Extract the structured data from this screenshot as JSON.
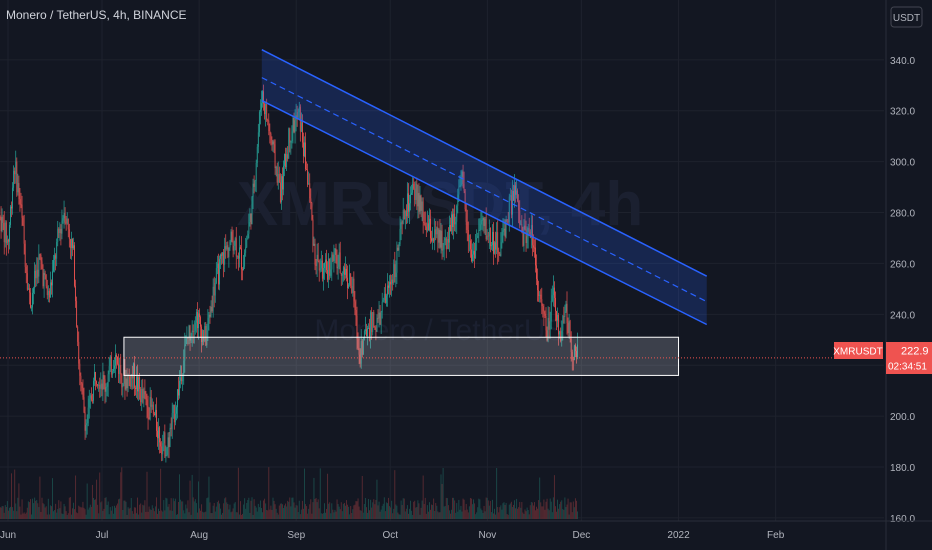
{
  "header": {
    "title": "Monero / TetherUS, 4h, BINANCE"
  },
  "watermark": {
    "symbol": "XMRUSDT, 4h",
    "name": "Monero / TetherUS"
  },
  "currency_button": "USDT",
  "price_tag": {
    "symbol": "XMRUSDT",
    "price": "222.9",
    "countdown": "02:34:51"
  },
  "colors": {
    "background": "#131722",
    "up": "#26a69a",
    "down": "#ef5350",
    "channel": "#2962ff",
    "grid": "#1e222d",
    "axis_text": "#b2b5be",
    "price_line": "#ef5350"
  },
  "chart_data": {
    "type": "candlestick",
    "ylim": [
      156,
      348
    ],
    "y_ticks": [
      "340.0",
      "320.0",
      "300.0",
      "280.0",
      "260.0",
      "240.0",
      "220.0",
      "200.0",
      "180.0",
      "160.0"
    ],
    "x_ticks": [
      "Jun",
      "Jul",
      "Aug",
      "Sep",
      "Oct",
      "Nov",
      "Dec",
      "2022",
      "Feb"
    ],
    "last_price": 222.9,
    "path": [
      {
        "x": "2021-05-25",
        "y": 258
      },
      {
        "x": "2021-05-29",
        "y": 280
      },
      {
        "x": "2021-06-01",
        "y": 268
      },
      {
        "x": "2021-06-03",
        "y": 300
      },
      {
        "x": "2021-06-05",
        "y": 282
      },
      {
        "x": "2021-06-08",
        "y": 244
      },
      {
        "x": "2021-06-11",
        "y": 262
      },
      {
        "x": "2021-06-14",
        "y": 246
      },
      {
        "x": "2021-06-17",
        "y": 270
      },
      {
        "x": "2021-06-19",
        "y": 282
      },
      {
        "x": "2021-06-22",
        "y": 262
      },
      {
        "x": "2021-06-24",
        "y": 212
      },
      {
        "x": "2021-06-26",
        "y": 196
      },
      {
        "x": "2021-06-29",
        "y": 218
      },
      {
        "x": "2021-07-02",
        "y": 212
      },
      {
        "x": "2021-07-05",
        "y": 224
      },
      {
        "x": "2021-07-08",
        "y": 214
      },
      {
        "x": "2021-07-11",
        "y": 216
      },
      {
        "x": "2021-07-14",
        "y": 207
      },
      {
        "x": "2021-07-17",
        "y": 202
      },
      {
        "x": "2021-07-20",
        "y": 190
      },
      {
        "x": "2021-07-22",
        "y": 188
      },
      {
        "x": "2021-07-25",
        "y": 208
      },
      {
        "x": "2021-07-28",
        "y": 230
      },
      {
        "x": "2021-07-31",
        "y": 240
      },
      {
        "x": "2021-08-03",
        "y": 230
      },
      {
        "x": "2021-08-06",
        "y": 252
      },
      {
        "x": "2021-08-09",
        "y": 264
      },
      {
        "x": "2021-08-12",
        "y": 270
      },
      {
        "x": "2021-08-15",
        "y": 260
      },
      {
        "x": "2021-08-18",
        "y": 284
      },
      {
        "x": "2021-08-21",
        "y": 328
      },
      {
        "x": "2021-08-24",
        "y": 308
      },
      {
        "x": "2021-08-27",
        "y": 288
      },
      {
        "x": "2021-08-30",
        "y": 312
      },
      {
        "x": "2021-09-02",
        "y": 318
      },
      {
        "x": "2021-09-05",
        "y": 290
      },
      {
        "x": "2021-09-07",
        "y": 262
      },
      {
        "x": "2021-09-10",
        "y": 256
      },
      {
        "x": "2021-09-13",
        "y": 262
      },
      {
        "x": "2021-09-16",
        "y": 258
      },
      {
        "x": "2021-09-19",
        "y": 250
      },
      {
        "x": "2021-09-21",
        "y": 224
      },
      {
        "x": "2021-09-24",
        "y": 236
      },
      {
        "x": "2021-09-27",
        "y": 236
      },
      {
        "x": "2021-09-30",
        "y": 248
      },
      {
        "x": "2021-10-03",
        "y": 262
      },
      {
        "x": "2021-10-06",
        "y": 282
      },
      {
        "x": "2021-10-09",
        "y": 288
      },
      {
        "x": "2021-10-12",
        "y": 276
      },
      {
        "x": "2021-10-15",
        "y": 270
      },
      {
        "x": "2021-10-18",
        "y": 268
      },
      {
        "x": "2021-10-21",
        "y": 276
      },
      {
        "x": "2021-10-24",
        "y": 292
      },
      {
        "x": "2021-10-27",
        "y": 262
      },
      {
        "x": "2021-10-30",
        "y": 276
      },
      {
        "x": "2021-11-02",
        "y": 270
      },
      {
        "x": "2021-11-05",
        "y": 266
      },
      {
        "x": "2021-11-08",
        "y": 282
      },
      {
        "x": "2021-11-10",
        "y": 288
      },
      {
        "x": "2021-11-12",
        "y": 270
      },
      {
        "x": "2021-11-15",
        "y": 274
      },
      {
        "x": "2021-11-18",
        "y": 244
      },
      {
        "x": "2021-11-20",
        "y": 232
      },
      {
        "x": "2021-11-22",
        "y": 246
      },
      {
        "x": "2021-11-24",
        "y": 232
      },
      {
        "x": "2021-11-26",
        "y": 242
      },
      {
        "x": "2021-11-28",
        "y": 226
      },
      {
        "x": "2021-11-30",
        "y": 222.9
      }
    ],
    "channel": {
      "upper": [
        {
          "x": "2021-08-21",
          "y": 344
        },
        {
          "x": "2022-01-10",
          "y": 255
        }
      ],
      "mid": [
        {
          "x": "2021-08-21",
          "y": 333
        },
        {
          "x": "2022-01-10",
          "y": 245
        }
      ],
      "lower": [
        {
          "x": "2021-08-21",
          "y": 324
        },
        {
          "x": "2022-01-10",
          "y": 236
        }
      ]
    },
    "zone": {
      "x_start": "2021-07-08",
      "x_end": "2022-01-01",
      "y_low": 216,
      "y_high": 231
    }
  }
}
